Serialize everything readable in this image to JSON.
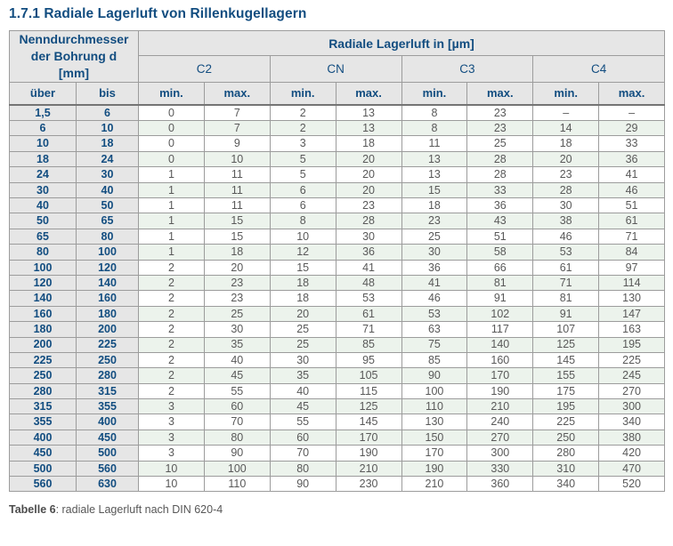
{
  "page": {
    "title": "1.7.1 Radiale Lagerluft von Rillenkugellagern"
  },
  "table": {
    "header": {
      "bore_group_label": "Nenndurchmesser der Bohrung d [mm]",
      "clearance_group_label": "Radiale Lagerluft in [µm]",
      "class_labels": [
        "C2",
        "CN",
        "C3",
        "C4"
      ],
      "over_label": "über",
      "to_label": "bis",
      "min_label": "min.",
      "max_label": "max."
    },
    "rows": [
      [
        "1,5",
        "6",
        "0",
        "7",
        "2",
        "13",
        "8",
        "23",
        "–",
        "–"
      ],
      [
        "6",
        "10",
        "0",
        "7",
        "2",
        "13",
        "8",
        "23",
        "14",
        "29"
      ],
      [
        "10",
        "18",
        "0",
        "9",
        "3",
        "18",
        "11",
        "25",
        "18",
        "33"
      ],
      [
        "18",
        "24",
        "0",
        "10",
        "5",
        "20",
        "13",
        "28",
        "20",
        "36"
      ],
      [
        "24",
        "30",
        "1",
        "11",
        "5",
        "20",
        "13",
        "28",
        "23",
        "41"
      ],
      [
        "30",
        "40",
        "1",
        "11",
        "6",
        "20",
        "15",
        "33",
        "28",
        "46"
      ],
      [
        "40",
        "50",
        "1",
        "11",
        "6",
        "23",
        "18",
        "36",
        "30",
        "51"
      ],
      [
        "50",
        "65",
        "1",
        "15",
        "8",
        "28",
        "23",
        "43",
        "38",
        "61"
      ],
      [
        "65",
        "80",
        "1",
        "15",
        "10",
        "30",
        "25",
        "51",
        "46",
        "71"
      ],
      [
        "80",
        "100",
        "1",
        "18",
        "12",
        "36",
        "30",
        "58",
        "53",
        "84"
      ],
      [
        "100",
        "120",
        "2",
        "20",
        "15",
        "41",
        "36",
        "66",
        "61",
        "97"
      ],
      [
        "120",
        "140",
        "2",
        "23",
        "18",
        "48",
        "41",
        "81",
        "71",
        "114"
      ],
      [
        "140",
        "160",
        "2",
        "23",
        "18",
        "53",
        "46",
        "91",
        "81",
        "130"
      ],
      [
        "160",
        "180",
        "2",
        "25",
        "20",
        "61",
        "53",
        "102",
        "91",
        "147"
      ],
      [
        "180",
        "200",
        "2",
        "30",
        "25",
        "71",
        "63",
        "117",
        "107",
        "163"
      ],
      [
        "200",
        "225",
        "2",
        "35",
        "25",
        "85",
        "75",
        "140",
        "125",
        "195"
      ],
      [
        "225",
        "250",
        "2",
        "40",
        "30",
        "95",
        "85",
        "160",
        "145",
        "225"
      ],
      [
        "250",
        "280",
        "2",
        "45",
        "35",
        "105",
        "90",
        "170",
        "155",
        "245"
      ],
      [
        "280",
        "315",
        "2",
        "55",
        "40",
        "115",
        "100",
        "190",
        "175",
        "270"
      ],
      [
        "315",
        "355",
        "3",
        "60",
        "45",
        "125",
        "110",
        "210",
        "195",
        "300"
      ],
      [
        "355",
        "400",
        "3",
        "70",
        "55",
        "145",
        "130",
        "240",
        "225",
        "340"
      ],
      [
        "400",
        "450",
        "3",
        "80",
        "60",
        "170",
        "150",
        "270",
        "250",
        "380"
      ],
      [
        "450",
        "500",
        "3",
        "90",
        "70",
        "190",
        "170",
        "300",
        "280",
        "420"
      ],
      [
        "500",
        "560",
        "10",
        "100",
        "80",
        "210",
        "190",
        "330",
        "310",
        "470"
      ],
      [
        "560",
        "630",
        "10",
        "110",
        "90",
        "230",
        "210",
        "360",
        "340",
        "520"
      ]
    ]
  },
  "caption": {
    "label": "Tabelle 6",
    "text": ": radiale Lagerluft nach DIN 620-4"
  },
  "colors": {
    "accent_blue": "#124d80",
    "header_bg": "#e6e6e6",
    "stripe_green": "#ecf3ec",
    "border_gray": "#9c9c9c",
    "value_text": "#595959"
  }
}
